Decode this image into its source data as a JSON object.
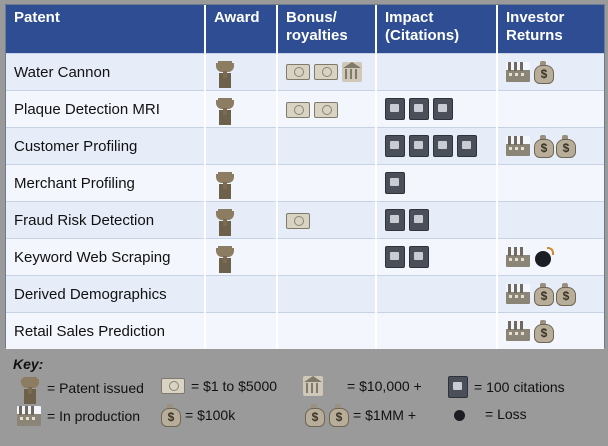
{
  "table": {
    "columns": [
      "Patent",
      "Award",
      "Bonus/\nroyalties",
      "Impact\n(Citations)",
      "Investor\nReturns"
    ],
    "rows": [
      {
        "patent": "Water Cannon",
        "award": [
          "trophy-icon"
        ],
        "bonus": [
          "bill-icon",
          "bill-icon",
          "bank-icon"
        ],
        "impact": [],
        "returns": [
          "factory-icon",
          "money-bag-icon"
        ]
      },
      {
        "patent": "Plaque Detection MRI",
        "award": [
          "trophy-icon"
        ],
        "bonus": [
          "bill-icon",
          "bill-icon"
        ],
        "impact": [
          "book-icon",
          "book-icon",
          "book-icon"
        ],
        "returns": []
      },
      {
        "patent": "Customer Profiling",
        "award": [],
        "bonus": [],
        "impact": [
          "book-icon",
          "book-icon",
          "book-icon",
          "book-icon"
        ],
        "returns": [
          "factory-icon",
          "money-bag-icon",
          "money-bag-icon"
        ]
      },
      {
        "patent": "Merchant Profiling",
        "award": [
          "trophy-icon"
        ],
        "bonus": [],
        "impact": [
          "book-icon"
        ],
        "returns": []
      },
      {
        "patent": "Fraud Risk Detection",
        "award": [
          "trophy-icon"
        ],
        "bonus": [
          "bill-icon"
        ],
        "impact": [
          "book-icon",
          "book-icon"
        ],
        "returns": []
      },
      {
        "patent": "Keyword Web Scraping",
        "award": [
          "trophy-icon"
        ],
        "bonus": [],
        "impact": [
          "book-icon",
          "book-icon"
        ],
        "returns": [
          "factory-icon",
          "bomb-icon"
        ]
      },
      {
        "patent": "Derived Demographics",
        "award": [],
        "bonus": [],
        "impact": [],
        "returns": [
          "factory-icon",
          "money-bag-icon",
          "money-bag-icon"
        ]
      },
      {
        "patent": "Retail Sales Prediction",
        "award": [],
        "bonus": [],
        "impact": [],
        "returns": [
          "factory-icon",
          "money-bag-icon"
        ]
      }
    ]
  },
  "key": {
    "title": "Key:",
    "patent_issued": "= Patent issued",
    "dollar_1_to_5000": "= $1 to $5000",
    "dollar_10000": "= $10,000 +",
    "citations_100": "= 100 citations",
    "in_production": "= In production",
    "dollar_100k": "= $100k",
    "dollar_1mm": "= $1MM +",
    "loss": "= Loss"
  }
}
